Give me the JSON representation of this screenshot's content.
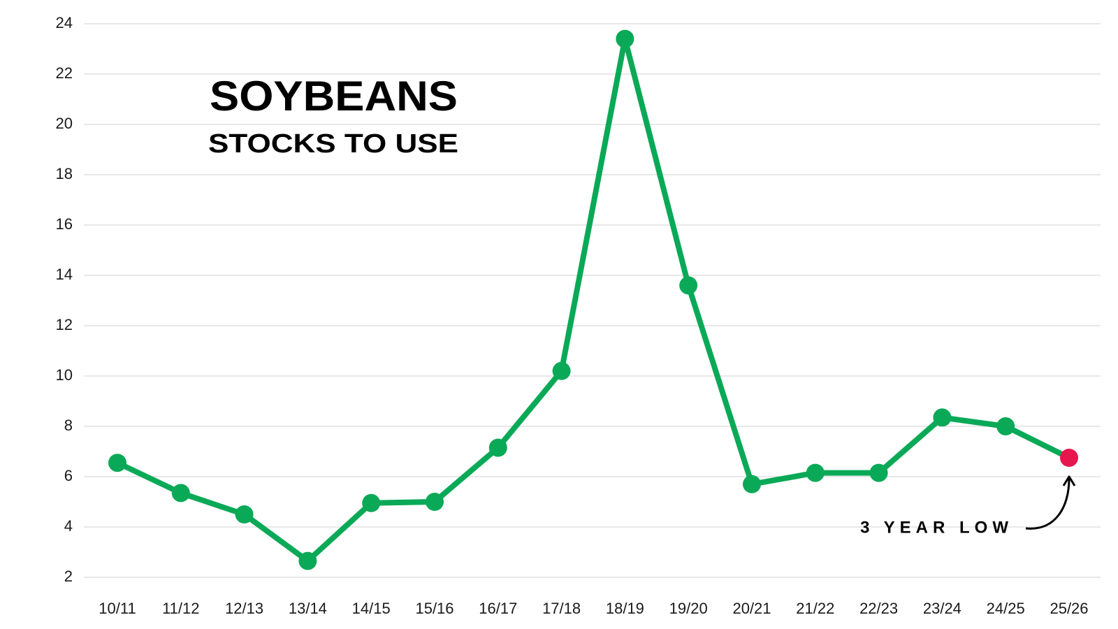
{
  "chart_data": {
    "type": "line",
    "title": "SOYBEANS",
    "subtitle": "STOCKS TO USE",
    "annotation": "3 YEAR LOW",
    "categories": [
      "10/11",
      "11/12",
      "12/13",
      "13/14",
      "14/15",
      "15/16",
      "16/17",
      "17/18",
      "18/19",
      "19/20",
      "20/21",
      "21/22",
      "22/23",
      "23/24",
      "24/25",
      "25/26"
    ],
    "series": [
      {
        "color": "#0aa957",
        "point_colors": [
          "#0aa957",
          "#0aa957",
          "#0aa957",
          "#0aa957",
          "#0aa957",
          "#0aa957",
          "#0aa957",
          "#0aa957",
          "#0aa957",
          "#0aa957",
          "#0aa957",
          "#0aa957",
          "#0aa957",
          "#0aa957",
          "#0aa957",
          "#e5174d"
        ],
        "values": [
          6.55,
          5.35,
          4.5,
          2.65,
          4.95,
          5.0,
          7.15,
          10.2,
          23.4,
          13.6,
          5.7,
          6.15,
          6.15,
          8.35,
          8.0,
          6.75
        ]
      }
    ],
    "ylim": [
      2,
      24
    ],
    "yticks": [
      2,
      4,
      6,
      8,
      10,
      12,
      14,
      16,
      18,
      20,
      22,
      24
    ],
    "grid": true
  }
}
